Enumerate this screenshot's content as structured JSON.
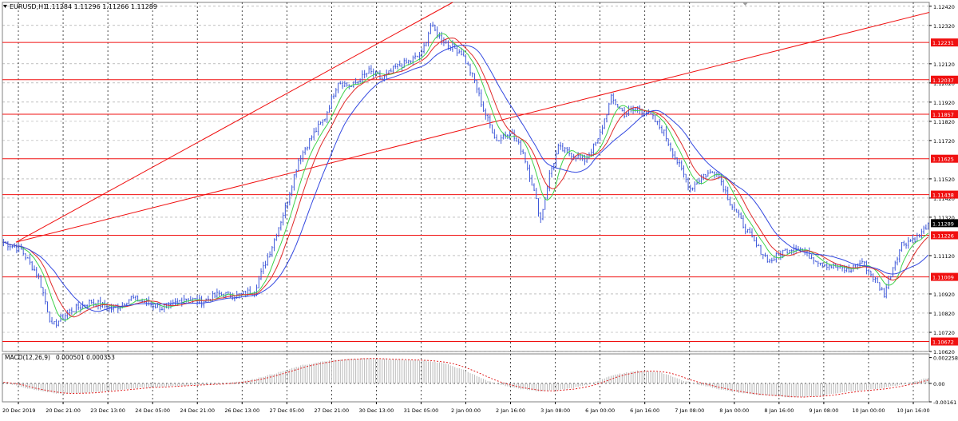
{
  "main_title": "EURUSD,H1",
  "ohlc": "1.11284 1.11296 1.11266 1.11289",
  "macd_title": "MACD(12,26,9)",
  "macd_values": "0.000501 0.000353",
  "colors": {
    "candles": "#3f59d9",
    "ma_fast": "#3fd24a",
    "ma_mid": "#e02a2a",
    "ma_slow": "#3348e0",
    "level": "#f01010",
    "trendline": "#f01010",
    "macd_hist": "#b8b8b8",
    "macd_signal": "#e02020",
    "grid": "#9a9a9a",
    "price_tag": "#000000"
  },
  "chart_data": [
    {
      "type": "line",
      "title": "EURUSD,H1",
      "ylim": [
        1.1062,
        1.1244
      ],
      "y_ticks": [
        "1.12420",
        "1.12320",
        "1.12120",
        "1.12020",
        "1.11920",
        "1.11820",
        "1.11720",
        "1.11520",
        "1.11420",
        "1.11320",
        "1.11120",
        "1.10920",
        "1.10820",
        "1.10720",
        "1.10620"
      ],
      "x_tick_labels": [
        "20 Dec 2019",
        "20 Dec 21:00",
        "23 Dec 13:00",
        "24 Dec 05:00",
        "24 Dec 21:00",
        "26 Dec 13:00",
        "27 Dec 05:00",
        "27 Dec 21:00",
        "30 Dec 13:00",
        "31 Dec 05:00",
        "2 Jan 00:00",
        "2 Jan 16:00",
        "3 Jan 08:00",
        "6 Jan 00:00",
        "6 Jan 16:00",
        "7 Jan 08:00",
        "8 Jan 00:00",
        "8 Jan 16:00",
        "9 Jan 08:00",
        "10 Jan 00:00",
        "10 Jan 16:00"
      ],
      "price_path": [
        [
          0,
          1.1119
        ],
        [
          8,
          1.1115
        ],
        [
          16,
          1.1101
        ],
        [
          22,
          1.1075
        ],
        [
          30,
          1.1083
        ],
        [
          40,
          1.1088
        ],
        [
          50,
          1.1084
        ],
        [
          58,
          1.109
        ],
        [
          66,
          1.1087
        ],
        [
          74,
          1.1084
        ],
        [
          82,
          1.109
        ],
        [
          90,
          1.1088
        ],
        [
          98,
          1.1092
        ],
        [
          106,
          1.1091
        ],
        [
          114,
          1.1094
        ],
        [
          122,
          1.1117
        ],
        [
          128,
          1.1137
        ],
        [
          134,
          1.1162
        ],
        [
          140,
          1.1174
        ],
        [
          146,
          1.1184
        ],
        [
          152,
          1.1203
        ],
        [
          158,
          1.12
        ],
        [
          166,
          1.1208
        ],
        [
          172,
          1.1204
        ],
        [
          178,
          1.121
        ],
        [
          184,
          1.1213
        ],
        [
          190,
          1.1217
        ],
        [
          194,
          1.1232
        ],
        [
          198,
          1.1226
        ],
        [
          202,
          1.1222
        ],
        [
          208,
          1.1218
        ],
        [
          214,
          1.1203
        ],
        [
          218,
          1.1188
        ],
        [
          224,
          1.1172
        ],
        [
          230,
          1.1177
        ],
        [
          236,
          1.1166
        ],
        [
          240,
          1.115
        ],
        [
          244,
          1.1131
        ],
        [
          248,
          1.1154
        ],
        [
          252,
          1.1168
        ],
        [
          258,
          1.1165
        ],
        [
          264,
          1.1162
        ],
        [
          270,
          1.1172
        ],
        [
          276,
          1.1194
        ],
        [
          282,
          1.1186
        ],
        [
          288,
          1.1189
        ],
        [
          294,
          1.1185
        ],
        [
          300,
          1.1176
        ],
        [
          306,
          1.1161
        ],
        [
          312,
          1.1147
        ],
        [
          318,
          1.1154
        ],
        [
          324,
          1.1156
        ],
        [
          330,
          1.114
        ],
        [
          336,
          1.1128
        ],
        [
          342,
          1.1117
        ],
        [
          348,
          1.1109
        ],
        [
          354,
          1.1114
        ],
        [
          360,
          1.1117
        ],
        [
          366,
          1.1112
        ],
        [
          372,
          1.1108
        ],
        [
          378,
          1.1106
        ],
        [
          384,
          1.1104
        ],
        [
          390,
          1.1109
        ],
        [
          396,
          1.1099
        ],
        [
          400,
          1.1092
        ],
        [
          404,
          1.1106
        ],
        [
          408,
          1.1118
        ],
        [
          412,
          1.112
        ],
        [
          416,
          1.1122
        ],
        [
          420,
          1.1129
        ]
      ],
      "horizontal_levels": [
        "1.12231",
        "1.12037",
        "1.11857",
        "1.11625",
        "1.11438",
        "1.11226",
        "1.11009",
        "1.10672"
      ],
      "last_price": "1.11289"
    },
    {
      "type": "bar",
      "title": "MACD(12,26,9)",
      "ylim": [
        -0.00161,
        0.00258
      ],
      "y_ticks": [
        "0.002258",
        "0.00",
        "-0.00161"
      ],
      "macd_profile": [
        [
          0,
          0.0001
        ],
        [
          10,
          -0.0004
        ],
        [
          24,
          -0.0009
        ],
        [
          40,
          -0.0008
        ],
        [
          60,
          -0.0004
        ],
        [
          80,
          -0.0002
        ],
        [
          100,
          0.0
        ],
        [
          112,
          0.0003
        ],
        [
          124,
          0.0009
        ],
        [
          136,
          0.0016
        ],
        [
          148,
          0.002
        ],
        [
          162,
          0.0022
        ],
        [
          176,
          0.0021
        ],
        [
          190,
          0.002
        ],
        [
          200,
          0.0018
        ],
        [
          210,
          0.0011
        ],
        [
          220,
          0.0002
        ],
        [
          232,
          -0.0004
        ],
        [
          244,
          -0.0007
        ],
        [
          256,
          -0.0005
        ],
        [
          266,
          -0.0001
        ],
        [
          276,
          0.0007
        ],
        [
          288,
          0.0011
        ],
        [
          298,
          0.001
        ],
        [
          308,
          0.0003
        ],
        [
          318,
          -0.0002
        ],
        [
          330,
          -0.0007
        ],
        [
          342,
          -0.001
        ],
        [
          356,
          -0.0012
        ],
        [
          370,
          -0.0011
        ],
        [
          384,
          -0.0007
        ],
        [
          396,
          -0.0005
        ],
        [
          408,
          -0.0001
        ],
        [
          420,
          0.0005
        ]
      ]
    }
  ]
}
